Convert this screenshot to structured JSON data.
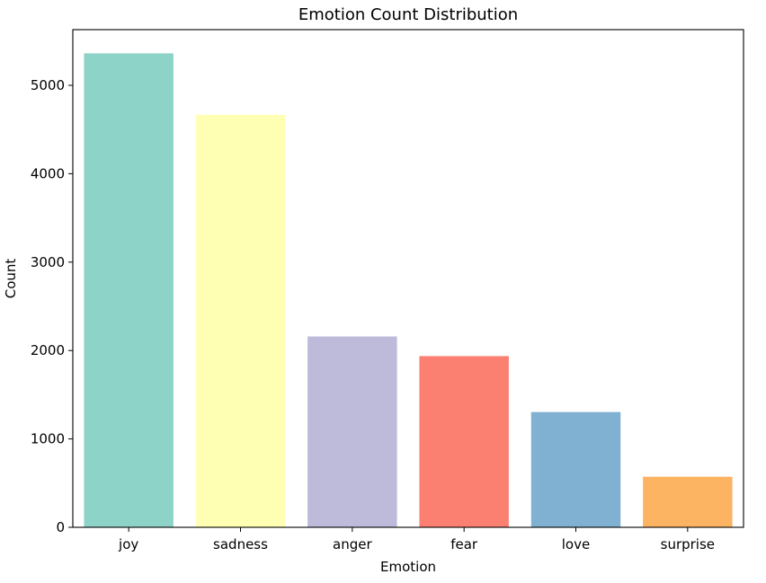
{
  "chart_data": {
    "type": "bar",
    "title": "Emotion Count Distribution",
    "xlabel": "Emotion",
    "ylabel": "Count",
    "categories": [
      "joy",
      "sadness",
      "anger",
      "fear",
      "love",
      "surprise"
    ],
    "values": [
      5362,
      4666,
      2159,
      1937,
      1304,
      572
    ],
    "colors": [
      "#8dd3c7",
      "#ffffb3",
      "#bebada",
      "#fb8072",
      "#80b1d3",
      "#fdb462"
    ],
    "ylim": [
      0,
      5630
    ],
    "yticks": [
      0,
      1000,
      2000,
      3000,
      4000,
      5000
    ],
    "grid": false,
    "legend": "none"
  }
}
